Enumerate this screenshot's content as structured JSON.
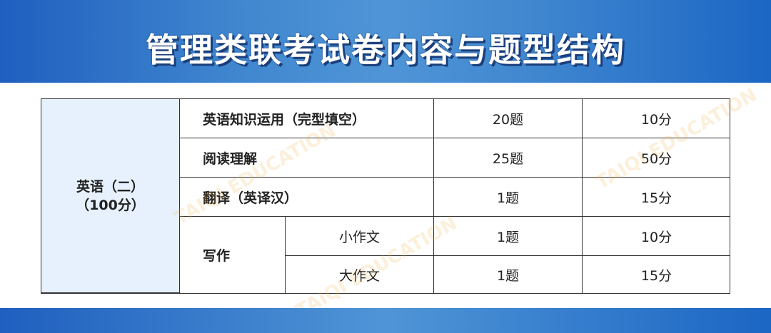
{
  "title": "管理类联考试卷内容与题型结构",
  "watermark": "TAIQI EDUCATION",
  "subject": {
    "name": "英语（二）",
    "total": "（100分）"
  },
  "rows": [
    {
      "section": "英语知识运用（完型填空）",
      "count": "20题",
      "score": "10分"
    },
    {
      "section": "阅读理解",
      "count": "25题",
      "score": "50分"
    },
    {
      "section": "翻译（英译汉）",
      "count": "1题",
      "score": "15分"
    }
  ],
  "writing": {
    "section": "写作",
    "items": [
      {
        "name": "小作文",
        "count": "1题",
        "score": "10分"
      },
      {
        "name": "大作文",
        "count": "1题",
        "score": "15分"
      }
    ]
  },
  "colors": {
    "header_blue": "#3f86cf",
    "subject_bg": "#e7f1fd"
  }
}
